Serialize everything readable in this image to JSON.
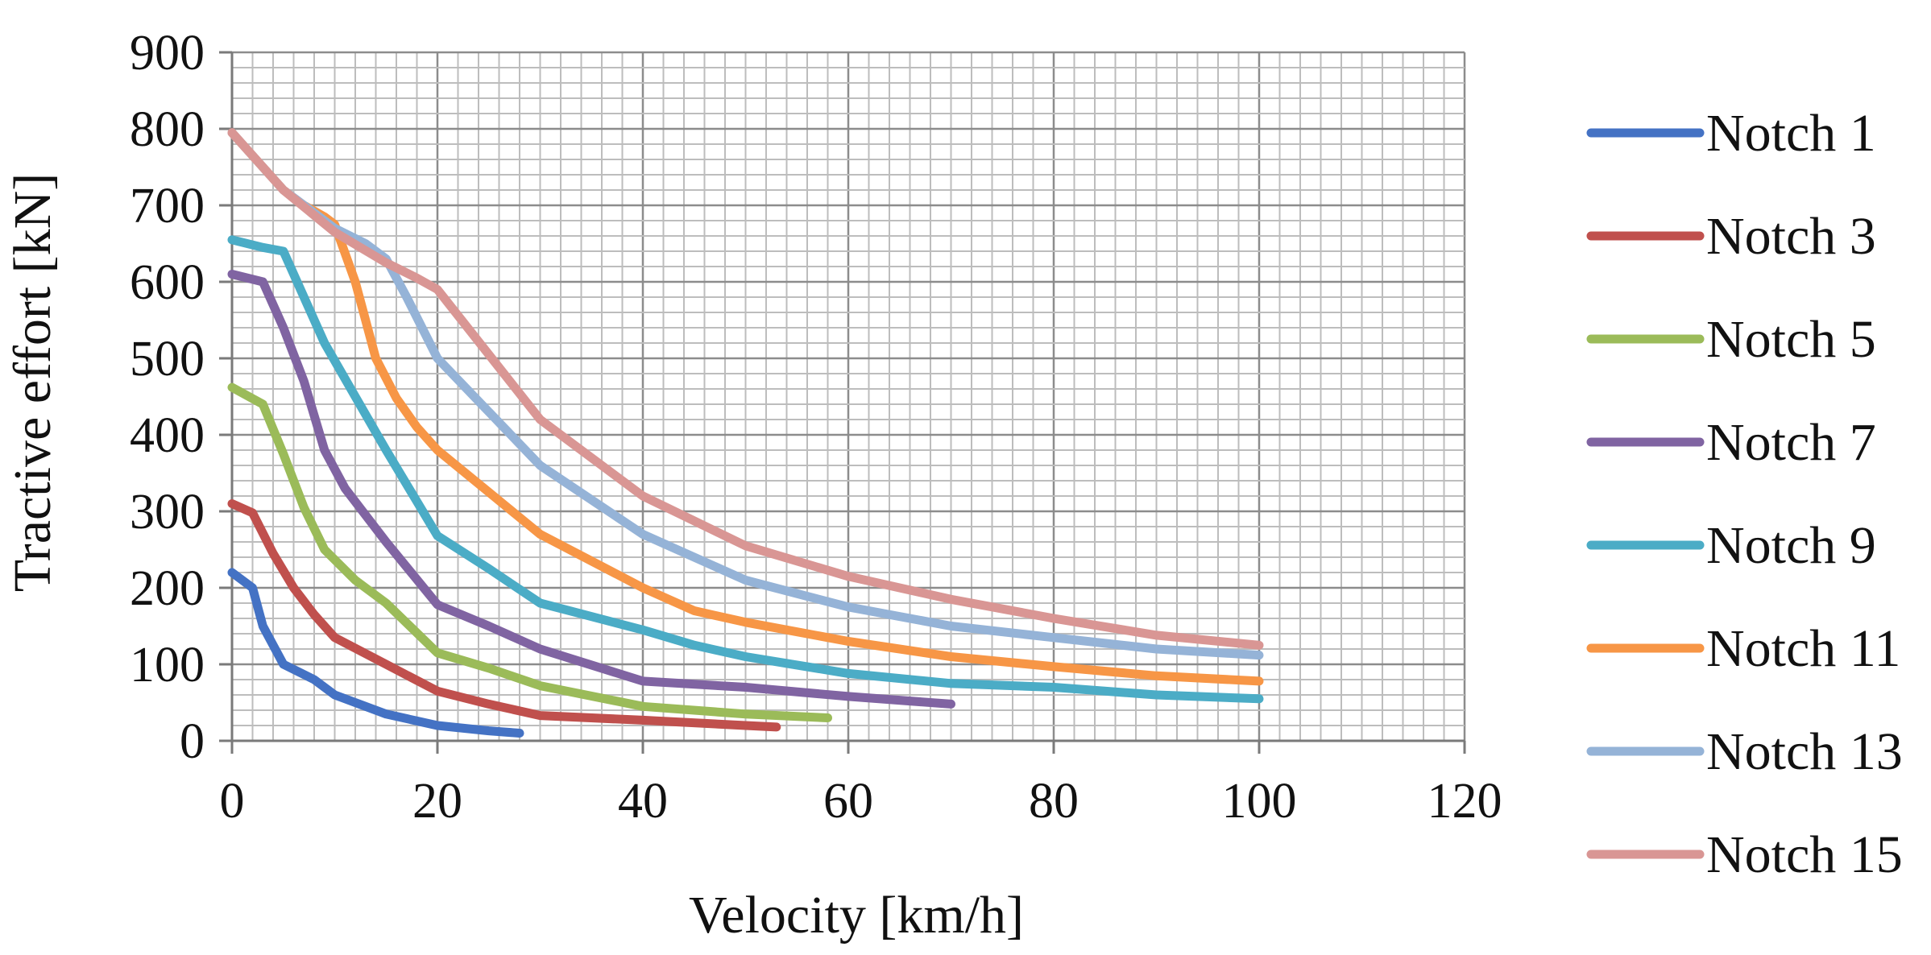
{
  "chart_data": {
    "type": "line",
    "title": "",
    "xlabel": "Velocity [km/h]",
    "ylabel": "Tractive effort [kN]",
    "xlim": [
      0,
      120
    ],
    "ylim": [
      0,
      900
    ],
    "xticks": [
      0,
      20,
      40,
      60,
      80,
      100,
      120
    ],
    "yticks": [
      0,
      100,
      200,
      300,
      400,
      500,
      600,
      700,
      800,
      900
    ],
    "x_tick_labels": [
      "0",
      "20",
      "40",
      "60",
      "80",
      "100",
      "120"
    ],
    "y_tick_labels": [
      "0",
      "100",
      "200",
      "300",
      "400",
      "500",
      "600",
      "700",
      "800",
      "900"
    ],
    "x_minor_step": 2,
    "y_minor_step": 20,
    "grid": true,
    "legend_position": "right",
    "series": [
      {
        "name": "Notch 1",
        "color": "#4472c4",
        "points": [
          [
            0,
            220
          ],
          [
            2,
            200
          ],
          [
            3,
            150
          ],
          [
            5,
            100
          ],
          [
            8,
            80
          ],
          [
            10,
            60
          ],
          [
            15,
            35
          ],
          [
            20,
            20
          ],
          [
            25,
            13
          ],
          [
            28,
            10
          ]
        ]
      },
      {
        "name": "Notch 3",
        "color": "#c0504d",
        "points": [
          [
            0,
            310
          ],
          [
            2,
            298
          ],
          [
            4,
            245
          ],
          [
            6,
            200
          ],
          [
            8,
            165
          ],
          [
            10,
            135
          ],
          [
            15,
            100
          ],
          [
            20,
            65
          ],
          [
            25,
            48
          ],
          [
            30,
            33
          ],
          [
            40,
            27
          ],
          [
            50,
            20
          ],
          [
            53,
            18
          ]
        ]
      },
      {
        "name": "Notch 5",
        "color": "#9bbb59",
        "points": [
          [
            0,
            462
          ],
          [
            3,
            440
          ],
          [
            5,
            375
          ],
          [
            7,
            305
          ],
          [
            9,
            250
          ],
          [
            12,
            210
          ],
          [
            15,
            180
          ],
          [
            20,
            115
          ],
          [
            25,
            95
          ],
          [
            30,
            72
          ],
          [
            40,
            45
          ],
          [
            50,
            35
          ],
          [
            58,
            30
          ]
        ]
      },
      {
        "name": "Notch 7",
        "color": "#8064a2",
        "points": [
          [
            0,
            610
          ],
          [
            3,
            600
          ],
          [
            5,
            540
          ],
          [
            7,
            470
          ],
          [
            9,
            380
          ],
          [
            11,
            330
          ],
          [
            15,
            260
          ],
          [
            20,
            178
          ],
          [
            25,
            150
          ],
          [
            30,
            120
          ],
          [
            40,
            78
          ],
          [
            50,
            70
          ],
          [
            60,
            58
          ],
          [
            70,
            48
          ]
        ]
      },
      {
        "name": "Notch 9",
        "color": "#4bacc6",
        "points": [
          [
            0,
            655
          ],
          [
            3,
            645
          ],
          [
            5,
            640
          ],
          [
            7,
            580
          ],
          [
            9,
            520
          ],
          [
            12,
            450
          ],
          [
            15,
            380
          ],
          [
            20,
            268
          ],
          [
            25,
            225
          ],
          [
            30,
            180
          ],
          [
            40,
            145
          ],
          [
            45,
            125
          ],
          [
            50,
            110
          ],
          [
            60,
            88
          ],
          [
            70,
            75
          ],
          [
            80,
            70
          ],
          [
            90,
            60
          ],
          [
            100,
            55
          ]
        ]
      },
      {
        "name": "Notch 11",
        "color": "#f79646",
        "points": [
          [
            0,
            795
          ],
          [
            5,
            720
          ],
          [
            7,
            700
          ],
          [
            9,
            685
          ],
          [
            10,
            675
          ],
          [
            12,
            600
          ],
          [
            14,
            500
          ],
          [
            16,
            448
          ],
          [
            18,
            410
          ],
          [
            20,
            380
          ],
          [
            25,
            325
          ],
          [
            30,
            270
          ],
          [
            40,
            200
          ],
          [
            45,
            170
          ],
          [
            50,
            155
          ],
          [
            60,
            130
          ],
          [
            70,
            110
          ],
          [
            80,
            97
          ],
          [
            90,
            85
          ],
          [
            100,
            78
          ]
        ]
      },
      {
        "name": "Notch 13",
        "color": "#95b3d7",
        "points": [
          [
            0,
            795
          ],
          [
            5,
            720
          ],
          [
            10,
            670
          ],
          [
            13,
            650
          ],
          [
            15,
            630
          ],
          [
            17,
            580
          ],
          [
            20,
            500
          ],
          [
            25,
            430
          ],
          [
            30,
            360
          ],
          [
            40,
            270
          ],
          [
            50,
            210
          ],
          [
            60,
            175
          ],
          [
            70,
            150
          ],
          [
            80,
            135
          ],
          [
            90,
            120
          ],
          [
            100,
            112
          ]
        ]
      },
      {
        "name": "Notch 15",
        "color": "#d99694",
        "points": [
          [
            0,
            795
          ],
          [
            5,
            720
          ],
          [
            10,
            665
          ],
          [
            15,
            625
          ],
          [
            18,
            605
          ],
          [
            20,
            590
          ],
          [
            25,
            505
          ],
          [
            30,
            420
          ],
          [
            40,
            320
          ],
          [
            50,
            255
          ],
          [
            60,
            215
          ],
          [
            70,
            185
          ],
          [
            80,
            160
          ],
          [
            90,
            138
          ],
          [
            100,
            125
          ]
        ]
      }
    ]
  }
}
